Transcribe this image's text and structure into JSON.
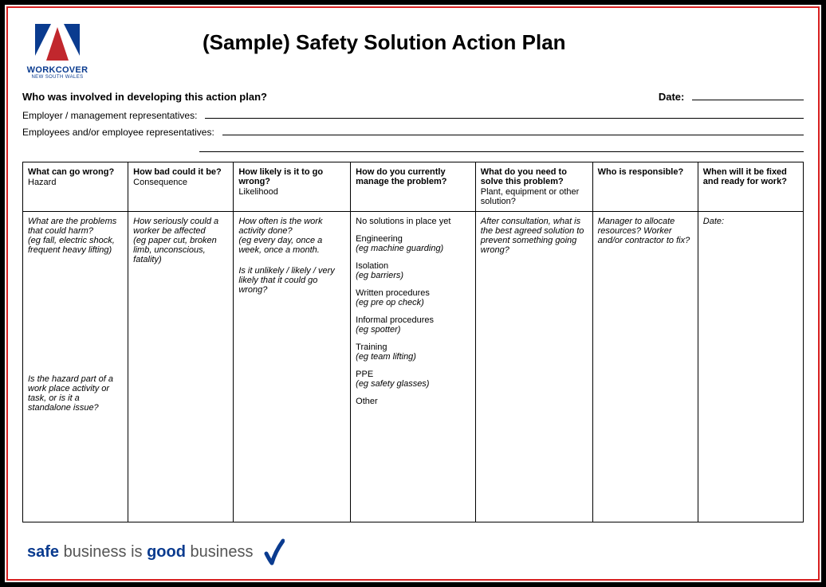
{
  "colors": {
    "outer_border": "#000000",
    "inner_border": "#d82020",
    "brand_blue": "#0a3b8f",
    "brand_red": "#c1272d",
    "text": "#000000",
    "muted": "#555555",
    "background": "#ffffff"
  },
  "logo": {
    "main": "WORKCOVER",
    "sub": "NEW SOUTH WALES"
  },
  "title": "(Sample) Safety Solution Action Plan",
  "meta": {
    "involved_label": "Who was involved in developing this action plan?",
    "date_label": "Date:"
  },
  "fields": {
    "employer_label": "Employer / management representatives:",
    "employees_label": "Employees and/or employee representatives:"
  },
  "table": {
    "col_widths_pct": [
      13.5,
      13.5,
      15,
      16,
      15,
      13.5,
      13.5
    ],
    "headers": [
      {
        "q": "What can go wrong?",
        "sub": "Hazard"
      },
      {
        "q": "How bad could it be?",
        "sub": "Consequence"
      },
      {
        "q": "How likely is it to go wrong?",
        "sub": "Likelihood"
      },
      {
        "q": "How do you currently manage the problem?",
        "sub": ""
      },
      {
        "q": "What do you need to solve this problem?",
        "sub": "Plant, equipment or other solution?"
      },
      {
        "q": "Who is responsible?",
        "sub": ""
      },
      {
        "q": "When will it be fixed and ready for work?",
        "sub": ""
      }
    ],
    "body": [
      {
        "top": "What are the problems that could harm?",
        "top_eg": "(eg fall, electric shock, frequent heavy lifting)",
        "bottom": "Is the hazard part of a work place activity or task, or is it a standalone issue?"
      },
      {
        "top": "How seriously could a worker be affected",
        "top_eg": "(eg paper cut, broken limb, unconscious, fatality)"
      },
      {
        "top": "How often is the work activity done?",
        "top_eg": "(eg every day, once a week, once a month.",
        "extra": "Is it unlikely / likely / very likely that it could go wrong?"
      },
      {
        "list": [
          {
            "t": "No solutions in place yet",
            "eg": ""
          },
          {
            "t": "Engineering",
            "eg": "(eg machine guarding)"
          },
          {
            "t": "Isolation",
            "eg": "(eg barriers)"
          },
          {
            "t": "Written procedures",
            "eg": "(eg pre op check)"
          },
          {
            "t": "Informal procedures",
            "eg": "(eg spotter)"
          },
          {
            "t": "Training",
            "eg": "(eg team lifting)"
          },
          {
            "t": "PPE",
            "eg": "(eg safety glasses)"
          },
          {
            "t": "Other",
            "eg": ""
          }
        ]
      },
      {
        "top": "After consultation, what is the best agreed solution to prevent something going wrong?"
      },
      {
        "top": "Manager to allocate resources? Worker and/or contractor to fix?"
      },
      {
        "top": "Date:"
      }
    ]
  },
  "footer": {
    "w1": "safe",
    "w2": "business is",
    "w3": "good",
    "w4": "business"
  }
}
